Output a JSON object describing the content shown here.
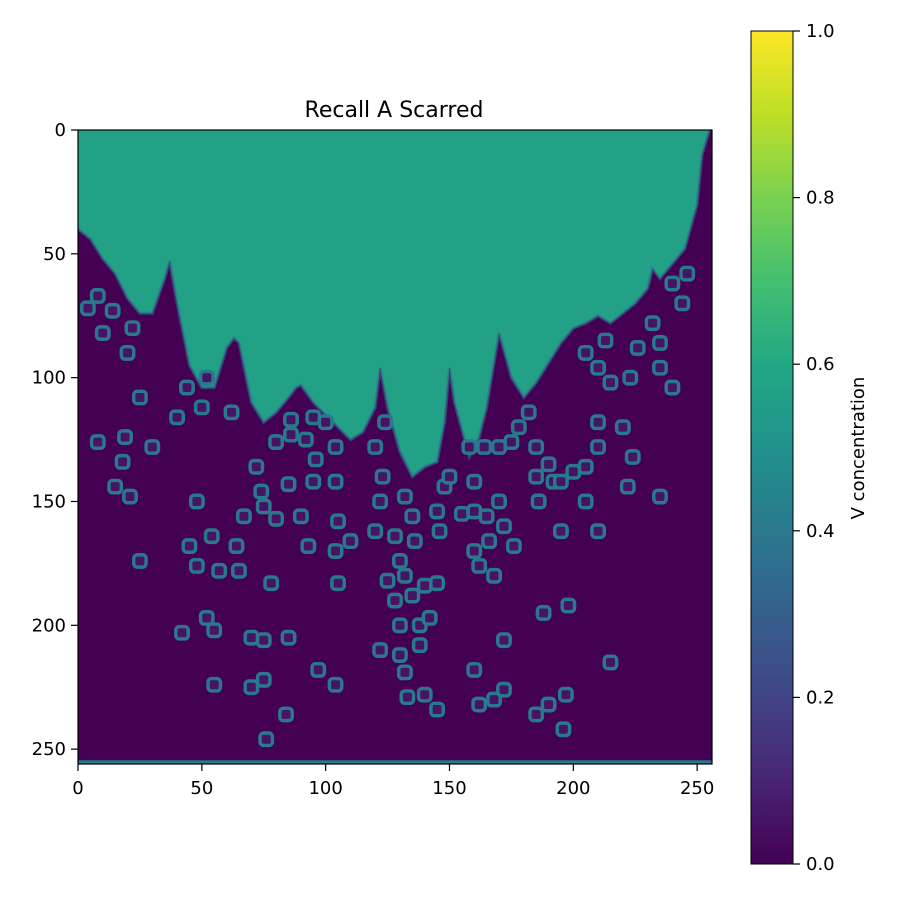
{
  "chart_data": {
    "type": "heatmap",
    "title": "Recall A Scarred",
    "xlabel": "",
    "ylabel": "",
    "grid_size": [
      256,
      256
    ],
    "xlim": [
      0,
      256
    ],
    "ylim": [
      256,
      0
    ],
    "x_ticks": [
      "0",
      "50",
      "100",
      "150",
      "200",
      "250"
    ],
    "y_ticks": [
      "0",
      "50",
      "100",
      "150",
      "200",
      "250"
    ],
    "x_tick_values": [
      0,
      50,
      100,
      150,
      200,
      250
    ],
    "y_tick_values": [
      0,
      50,
      100,
      150,
      200,
      250
    ],
    "colormap": "viridis",
    "colorbar": {
      "label": "V concentration",
      "range": [
        0,
        1
      ],
      "ticks": [
        "0.0",
        "0.2",
        "0.4",
        "0.6",
        "0.8",
        "1.0"
      ],
      "tick_values": [
        0,
        0.2,
        0.4,
        0.6,
        0.8,
        1.0
      ]
    },
    "background_value": 0.0,
    "region_value": 0.57,
    "spot_value": 0.4,
    "region_boundary": [
      [
        0,
        40
      ],
      [
        5,
        44
      ],
      [
        10,
        52
      ],
      [
        15,
        58
      ],
      [
        20,
        68
      ],
      [
        25,
        74
      ],
      [
        30,
        74
      ],
      [
        35,
        60
      ],
      [
        37,
        53
      ],
      [
        40,
        70
      ],
      [
        45,
        95
      ],
      [
        50,
        104
      ],
      [
        55,
        104
      ],
      [
        60,
        88
      ],
      [
        63,
        84
      ],
      [
        65,
        86
      ],
      [
        70,
        110
      ],
      [
        75,
        118
      ],
      [
        80,
        114
      ],
      [
        85,
        108
      ],
      [
        88,
        104
      ],
      [
        90,
        103
      ],
      [
        95,
        110
      ],
      [
        100,
        115
      ],
      [
        105,
        120
      ],
      [
        110,
        125
      ],
      [
        115,
        122
      ],
      [
        120,
        112
      ],
      [
        122,
        96
      ],
      [
        125,
        112
      ],
      [
        130,
        130
      ],
      [
        135,
        140
      ],
      [
        140,
        136
      ],
      [
        145,
        134
      ],
      [
        148,
        118
      ],
      [
        150,
        96
      ],
      [
        152,
        110
      ],
      [
        158,
        132
      ],
      [
        162,
        124
      ],
      [
        165,
        112
      ],
      [
        170,
        82
      ],
      [
        175,
        100
      ],
      [
        180,
        108
      ],
      [
        185,
        102
      ],
      [
        190,
        94
      ],
      [
        195,
        86
      ],
      [
        200,
        80
      ],
      [
        205,
        78
      ],
      [
        210,
        75
      ],
      [
        215,
        78
      ],
      [
        220,
        74
      ],
      [
        225,
        70
      ],
      [
        230,
        64
      ],
      [
        232,
        56
      ],
      [
        235,
        60
      ],
      [
        240,
        54
      ],
      [
        245,
        48
      ],
      [
        250,
        30
      ],
      [
        252,
        10
      ],
      [
        255,
        0
      ]
    ],
    "spots": [
      [
        8,
        67
      ],
      [
        4,
        72
      ],
      [
        14,
        73
      ],
      [
        10,
        82
      ],
      [
        22,
        80
      ],
      [
        20,
        90
      ],
      [
        25,
        108
      ],
      [
        8,
        126
      ],
      [
        19,
        124
      ],
      [
        18,
        134
      ],
      [
        30,
        128
      ],
      [
        15,
        144
      ],
      [
        21,
        148
      ],
      [
        25,
        174
      ],
      [
        40,
        116
      ],
      [
        44,
        104
      ],
      [
        50,
        112
      ],
      [
        52,
        100
      ],
      [
        62,
        114
      ],
      [
        48,
        150
      ],
      [
        45,
        168
      ],
      [
        48,
        176
      ],
      [
        54,
        164
      ],
      [
        57,
        178
      ],
      [
        64,
        168
      ],
      [
        65,
        178
      ],
      [
        52,
        197
      ],
      [
        55,
        202
      ],
      [
        42,
        203
      ],
      [
        55,
        224
      ],
      [
        70,
        225
      ],
      [
        75,
        222
      ],
      [
        70,
        205
      ],
      [
        75,
        206
      ],
      [
        85,
        205
      ],
      [
        78,
        183
      ],
      [
        67,
        156
      ],
      [
        72,
        136
      ],
      [
        74,
        146
      ],
      [
        75,
        152
      ],
      [
        80,
        126
      ],
      [
        86,
        123
      ],
      [
        92,
        125
      ],
      [
        85,
        143
      ],
      [
        86,
        117
      ],
      [
        95,
        116
      ],
      [
        100,
        118
      ],
      [
        104,
        128
      ],
      [
        96,
        133
      ],
      [
        95,
        142
      ],
      [
        104,
        142
      ],
      [
        90,
        156
      ],
      [
        80,
        157
      ],
      [
        93,
        168
      ],
      [
        105,
        158
      ],
      [
        104,
        170
      ],
      [
        110,
        166
      ],
      [
        105,
        183
      ],
      [
        97,
        218
      ],
      [
        104,
        224
      ],
      [
        84,
        236
      ],
      [
        76,
        246
      ],
      [
        120,
        128
      ],
      [
        124,
        118
      ],
      [
        123,
        140
      ],
      [
        122,
        150
      ],
      [
        120,
        162
      ],
      [
        128,
        164
      ],
      [
        125,
        182
      ],
      [
        132,
        180
      ],
      [
        128,
        190
      ],
      [
        135,
        188
      ],
      [
        140,
        184
      ],
      [
        130,
        200
      ],
      [
        138,
        200
      ],
      [
        142,
        197
      ],
      [
        138,
        208
      ],
      [
        130,
        212
      ],
      [
        132,
        219
      ],
      [
        133,
        229
      ],
      [
        140,
        228
      ],
      [
        135,
        156
      ],
      [
        130,
        174
      ],
      [
        136,
        166
      ],
      [
        132,
        148
      ],
      [
        145,
        154
      ],
      [
        146,
        162
      ],
      [
        148,
        144
      ],
      [
        150,
        140
      ],
      [
        145,
        183
      ],
      [
        160,
        142
      ],
      [
        155,
        155
      ],
      [
        160,
        154
      ],
      [
        165,
        156
      ],
      [
        158,
        128
      ],
      [
        164,
        128
      ],
      [
        160,
        170
      ],
      [
        162,
        176
      ],
      [
        166,
        166
      ],
      [
        170,
        128
      ],
      [
        175,
        126
      ],
      [
        178,
        120
      ],
      [
        182,
        114
      ],
      [
        185,
        128
      ],
      [
        185,
        140
      ],
      [
        186,
        150
      ],
      [
        170,
        150
      ],
      [
        172,
        160
      ],
      [
        176,
        168
      ],
      [
        168,
        180
      ],
      [
        172,
        206
      ],
      [
        190,
        135
      ],
      [
        192,
        142
      ],
      [
        195,
        142
      ],
      [
        200,
        138
      ],
      [
        205,
        136
      ],
      [
        210,
        128
      ],
      [
        205,
        150
      ],
      [
        210,
        162
      ],
      [
        195,
        162
      ],
      [
        188,
        195
      ],
      [
        198,
        192
      ],
      [
        210,
        118
      ],
      [
        210,
        96
      ],
      [
        205,
        90
      ],
      [
        213,
        85
      ],
      [
        215,
        102
      ],
      [
        223,
        100
      ],
      [
        226,
        88
      ],
      [
        235,
        86
      ],
      [
        235,
        96
      ],
      [
        240,
        104
      ],
      [
        232,
        78
      ],
      [
        244,
        70
      ],
      [
        240,
        62
      ],
      [
        246,
        58
      ],
      [
        220,
        120
      ],
      [
        224,
        132
      ],
      [
        222,
        144
      ],
      [
        235,
        148
      ],
      [
        215,
        215
      ],
      [
        185,
        236
      ],
      [
        190,
        232
      ],
      [
        197,
        228
      ],
      [
        196,
        242
      ],
      [
        160,
        218
      ],
      [
        162,
        232
      ],
      [
        168,
        230
      ],
      [
        172,
        226
      ],
      [
        145,
        234
      ],
      [
        122,
        210
      ]
    ]
  }
}
